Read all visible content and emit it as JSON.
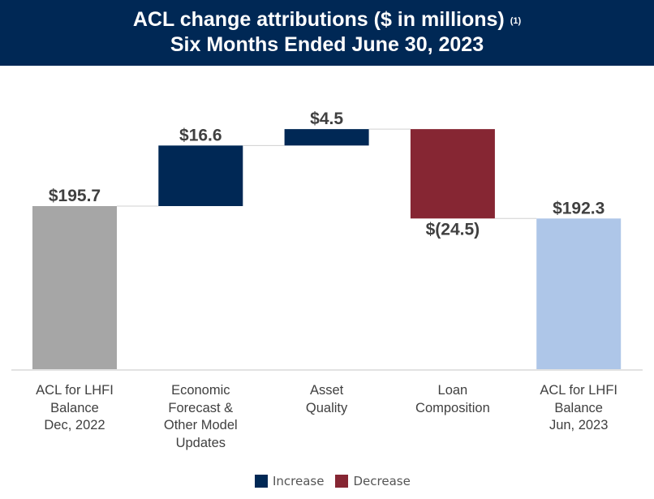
{
  "header": {
    "title": "ACL change attributions ($ in millions)",
    "footnote": "(1)",
    "subtitle": "Six Months Ended June 30, 2023"
  },
  "chart_data": {
    "type": "waterfall",
    "categories": [
      "ACL for LHFI Balance Dec, 2022",
      "Economic Forecast & Other Model Updates",
      "Asset Quality",
      "Loan Composition",
      "ACL for LHFI Balance Jun, 2023"
    ],
    "category_lines": [
      [
        "ACL for LHFI",
        "Balance",
        "Dec, 2022"
      ],
      [
        "Economic",
        "Forecast &",
        "Other Model",
        "Updates"
      ],
      [
        "Asset",
        "Quality"
      ],
      [
        "Loan",
        "Composition"
      ],
      [
        "ACL for LHFI",
        "Balance",
        "Jun, 2023"
      ]
    ],
    "values": [
      195.7,
      16.6,
      4.5,
      -24.5,
      192.3
    ],
    "kinds": [
      "total",
      "increase",
      "increase",
      "decrease",
      "total"
    ],
    "data_labels": [
      "$195.7",
      "$16.6",
      "$4.5",
      "$(24.5)",
      "$192.3"
    ],
    "ylim": [
      151,
      220
    ],
    "colors": {
      "start_total": "#A6A6A6",
      "increase": "#002855",
      "decrease": "#862633",
      "end_total": "#AEC6E8",
      "connector": "#D0D0D0"
    },
    "legend": [
      {
        "name": "Increase",
        "color": "#002855"
      },
      {
        "name": "Decrease",
        "color": "#862633"
      }
    ],
    "legend_position": "bottom"
  }
}
